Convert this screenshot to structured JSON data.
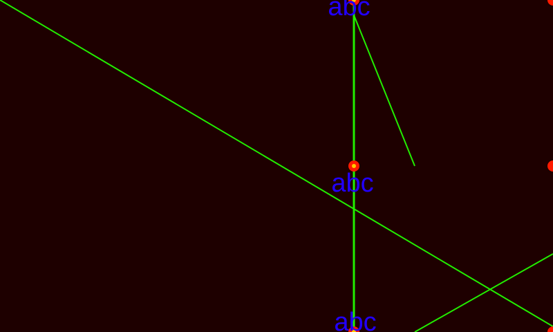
{
  "colors": {
    "background": "#1e0000",
    "line": "#22ee00",
    "dot": "#ff1a00",
    "dot_highlight": "#ffcc00",
    "label": "#2200ff"
  },
  "labels": {
    "top": "abc",
    "middle": "abc",
    "bottom": "abc"
  }
}
